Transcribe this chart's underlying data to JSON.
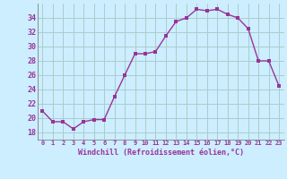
{
  "x": [
    0,
    1,
    2,
    3,
    4,
    5,
    6,
    7,
    8,
    9,
    10,
    11,
    12,
    13,
    14,
    15,
    16,
    17,
    18,
    19,
    20,
    21,
    22,
    23
  ],
  "y": [
    21.0,
    19.5,
    19.5,
    18.5,
    19.5,
    19.8,
    19.8,
    23.0,
    26.0,
    29.0,
    29.0,
    29.3,
    31.5,
    33.5,
    34.0,
    35.2,
    35.0,
    35.2,
    34.5,
    34.0,
    32.5,
    28.0,
    28.0,
    24.5
  ],
  "line_color": "#993399",
  "marker_color": "#993399",
  "bg_color": "#cceeff",
  "grid_color": "#aacccc",
  "xlabel": "Windchill (Refroidissement éolien,°C)",
  "xlabel_color": "#993399",
  "tick_color": "#993399",
  "ylim": [
    17,
    36
  ],
  "xlim": [
    -0.5,
    23.5
  ],
  "yticks": [
    18,
    20,
    22,
    24,
    26,
    28,
    30,
    32,
    34
  ],
  "xticks": [
    0,
    1,
    2,
    3,
    4,
    5,
    6,
    7,
    8,
    9,
    10,
    11,
    12,
    13,
    14,
    15,
    16,
    17,
    18,
    19,
    20,
    21,
    22,
    23
  ]
}
